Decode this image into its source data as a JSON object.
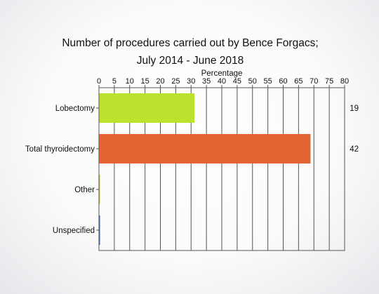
{
  "chart_data": {
    "type": "bar",
    "orientation": "horizontal",
    "title_lines": [
      "Number of procedures carried out by Bence Forgacs;",
      "July 2014 - June 2018"
    ],
    "xlabel": "Percentage",
    "ylabel": "",
    "xlim": [
      0,
      80
    ],
    "tick_step": 5,
    "tick_labels": [
      "0",
      "5",
      "10",
      "15",
      "20",
      "25",
      "30",
      "35",
      "40",
      "45",
      "50",
      "55",
      "60",
      "65",
      "70",
      "75",
      "80"
    ],
    "grid": true,
    "categories": [
      "Lobectomy",
      "Total thyroidectomy",
      "Other",
      "Unspecified"
    ],
    "values": [
      31.1,
      68.9,
      0,
      0
    ],
    "counts": [
      "19",
      "42",
      "",
      ""
    ],
    "colors": [
      "#bde22e",
      "#e36531",
      "#c9c23a",
      "#3a5fb0"
    ]
  }
}
